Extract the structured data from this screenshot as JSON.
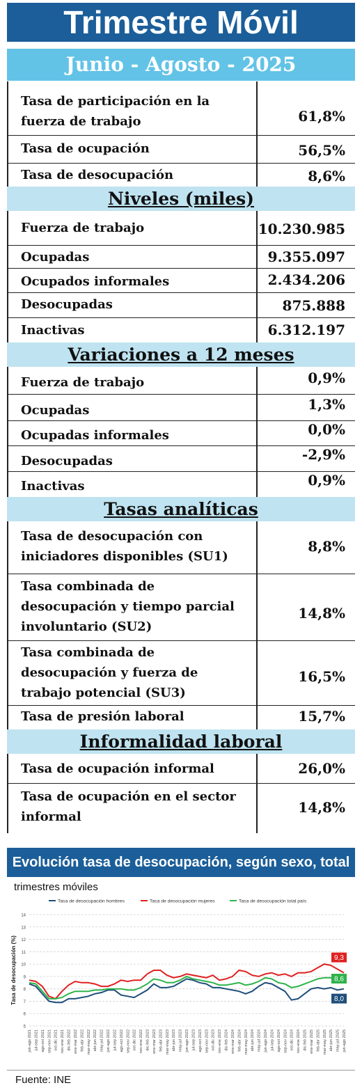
{
  "header": {
    "title": "Trimestre Móvil",
    "period": "Junio - Agosto - 2025"
  },
  "tasas": [
    {
      "label": "Tasa de participación en la fuerza de trabajo",
      "value": "61,8%"
    },
    {
      "label": "Tasa de ocupación",
      "value": "56,5%"
    },
    {
      "label": "Tasa de desocupación",
      "value": "8,6%"
    }
  ],
  "niveles": {
    "title": "Niveles  (miles)",
    "rows": [
      {
        "label": "Fuerza de trabajo",
        "value": "10.230.985"
      },
      {
        "label": "Ocupadas",
        "value": "9.355.097"
      },
      {
        "label": "Ocupados informales",
        "value": "2.434.206"
      },
      {
        "label": "Desocupadas",
        "value": "875.888"
      },
      {
        "label": "Inactivas",
        "value": "6.312.197"
      }
    ]
  },
  "variaciones": {
    "title": "Variaciones a 12 meses",
    "rows": [
      {
        "label": "Fuerza de trabajo",
        "value": "0,9%"
      },
      {
        "label": "Ocupadas",
        "value": "1,3%"
      },
      {
        "label": "Ocupadas informales",
        "value": "0,0%"
      },
      {
        "label": "Desocupadas",
        "value": "-2,9%"
      },
      {
        "label": "Inactivas",
        "value": "0,9%"
      }
    ]
  },
  "analiticas": {
    "title": "Tasas  analíticas",
    "rows": [
      {
        "label": "Tasa de desocupación con iniciadores disponibles (SU1)",
        "value": "8,8%"
      },
      {
        "label": "Tasa combinada de desocupación y tiempo parcial involuntario (SU2)",
        "value": "14,8%"
      },
      {
        "label": "Tasa combinada de desocupación y fuerza de trabajo potencial (SU3)",
        "value": "16,5%"
      },
      {
        "label": "Tasa de presión laboral",
        "value": "15,7%"
      }
    ]
  },
  "informalidad": {
    "title": "Informalidad  laboral",
    "rows": [
      {
        "label": "Tasa de ocupación informal",
        "value": "26,0%"
      },
      {
        "label": "Tasa de ocupación en el sector informal",
        "value": "14,8%"
      }
    ]
  },
  "chart_header": "Evolución tasa de desocupación, según sexo, total país",
  "chart_subtitle": "trimestres móviles",
  "source": "Fuente: INE",
  "chart_data": {
    "type": "line",
    "ylabel": "Tasa de desocupación (%)",
    "ylim": [
      5,
      14
    ],
    "yticks": [
      5,
      6,
      7,
      8,
      9,
      10,
      11,
      12,
      13,
      14
    ],
    "grid": true,
    "legend": "top",
    "categories": [
      "jun-ago 2021",
      "jul-sep 2021",
      "ago-oct 2021",
      "sep-nov 2021",
      "oct-dic 2021",
      "nov-ene 2021",
      "dic-feb 2022",
      "ene-mar 2022",
      "feb-abr 2022",
      "mar-may 2022",
      "abr-jun 2022",
      "may-jul 2022",
      "jun-ago 2022",
      "jul-sep 2022",
      "ago-oct 2022",
      "sep-nov 2022",
      "oct-dic 2022",
      "nov-ene 2022",
      "dic-feb 2023",
      "ene-mar 2023",
      "feb-abr 2023",
      "mar-may 2023",
      "abr-jun 2023",
      "may-jul 2023",
      "jun-ago 2023",
      "jul-sep 2023",
      "ago-oct 2023",
      "sep-nov 2023",
      "oct-dic 2023",
      "nov-ene 2023",
      "dic-feb 2024",
      "ene-mar 2024",
      "feb-abr 2024",
      "mar-may 2024",
      "abr-jun 2024",
      "may-jul 2024",
      "jun-ago 2024",
      "jul-sep 2024",
      "ago-oct 2024",
      "sep-nov 2024",
      "oct-dic 2024",
      "nov-ene 2024",
      "dic-feb 2025",
      "ene-mar 2025",
      "feb-abr 2025",
      "mar-may 2025",
      "abr-jun 2025",
      "may-jul 2025",
      "jun-ago 2025"
    ],
    "series": [
      {
        "name": "Tasa de desocupación hombres",
        "color": "#1f4e79",
        "values": [
          8.4,
          8.2,
          7.6,
          7.0,
          6.9,
          6.9,
          7.2,
          7.2,
          7.3,
          7.4,
          7.6,
          7.7,
          7.9,
          7.9,
          7.5,
          7.4,
          7.3,
          7.6,
          7.9,
          8.4,
          8.1,
          8.1,
          8.2,
          8.5,
          8.8,
          8.7,
          8.5,
          8.4,
          8.1,
          8.1,
          8.0,
          7.9,
          7.8,
          7.6,
          7.8,
          8.2,
          8.5,
          8.4,
          8.1,
          7.8,
          7.1,
          7.2,
          7.6,
          8.0,
          8.1,
          8.0,
          8.1,
          7.9,
          8.0
        ]
      },
      {
        "name": "Tasa de desocupación mujeres",
        "color": "#e02020",
        "values": [
          8.7,
          8.6,
          8.2,
          7.4,
          7.2,
          7.8,
          8.3,
          8.6,
          8.5,
          8.5,
          8.4,
          8.2,
          8.2,
          8.4,
          8.7,
          8.6,
          8.7,
          8.7,
          9.2,
          9.5,
          9.5,
          9.1,
          8.9,
          9.0,
          9.2,
          9.1,
          9.0,
          8.9,
          9.1,
          8.7,
          8.8,
          9.0,
          9.5,
          9.4,
          9.1,
          9.0,
          9.2,
          9.3,
          9.1,
          9.2,
          9.0,
          9.3,
          9.3,
          9.4,
          9.7,
          10.0,
          9.9,
          9.6,
          9.3
        ]
      },
      {
        "name": "Tasa de desocupación total país",
        "color": "#2db34a",
        "values": [
          8.5,
          8.4,
          7.8,
          7.2,
          7.2,
          7.3,
          7.6,
          7.8,
          7.8,
          7.8,
          7.9,
          7.9,
          8.0,
          8.0,
          8.0,
          7.9,
          7.9,
          8.1,
          8.4,
          8.8,
          8.7,
          8.5,
          8.5,
          8.7,
          9.0,
          8.8,
          8.7,
          8.6,
          8.5,
          8.3,
          8.3,
          8.4,
          8.5,
          8.3,
          8.4,
          8.6,
          8.9,
          8.8,
          8.5,
          8.4,
          8.1,
          8.2,
          8.4,
          8.6,
          8.8,
          8.9,
          8.9,
          8.7,
          8.6
        ]
      }
    ],
    "end_labels": [
      "8,0",
      "9,3",
      "8,6"
    ]
  }
}
